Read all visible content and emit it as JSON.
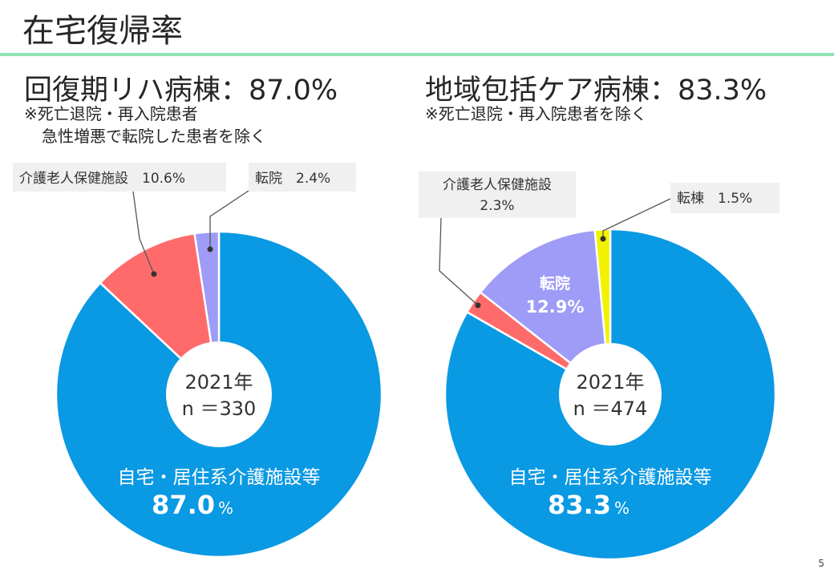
{
  "page": {
    "title": "在宅復帰率",
    "page_number": "5"
  },
  "colors": {
    "home": "#0a99e3",
    "care_facility": "#ff6b6b",
    "transfer_hospital": "#9e9cf7",
    "transfer_ward": "#f2f200",
    "callout_bg": "#f0f0f0",
    "rule": "#8fe3b3"
  },
  "panels": [
    {
      "heading": "回復期リハ病棟：87.0%",
      "note_line1": "※死亡退院・再入院患者",
      "note_line2": "急性増悪で転院した患者を除く",
      "center_year": "2021年",
      "center_n": "n ＝330",
      "main_label": "自宅・居住系介護施設等",
      "main_value": "87.0",
      "main_unit": "%",
      "callouts": [
        {
          "text": "介護老人保健施設　10.6%"
        },
        {
          "text": "転院　2.4%"
        }
      ]
    },
    {
      "heading": "地域包括ケア病棟：83.3%",
      "note_line1": "※死亡退院・再入院患者を除く",
      "center_year": "2021年",
      "center_n": "n ＝474",
      "main_label": "自宅・居住系介護施設等",
      "main_value": "83.3",
      "main_unit": "%",
      "inner_label_line1": "転院",
      "inner_label_line2": "12.9%",
      "callouts": [
        {
          "text_line1": "介護老人保健施設",
          "text_line2": "2.3%"
        },
        {
          "text": "転棟　1.5%"
        }
      ]
    }
  ],
  "chart_data": [
    {
      "type": "pie",
      "title": "回復期リハ病棟：87.0%",
      "categories": [
        "自宅・居住系介護施設等",
        "介護老人保健施設",
        "転院"
      ],
      "values": [
        87.0,
        10.6,
        2.4
      ],
      "colors": [
        "#0a99e3",
        "#ff6b6b",
        "#9e9cf7"
      ],
      "center_text": [
        "2021年",
        "n ＝330"
      ]
    },
    {
      "type": "pie",
      "title": "地域包括ケア病棟：83.3%",
      "categories": [
        "自宅・居住系介護施設等",
        "介護老人保健施設",
        "転院",
        "転棟"
      ],
      "values": [
        83.3,
        2.3,
        12.9,
        1.5
      ],
      "colors": [
        "#0a99e3",
        "#ff6b6b",
        "#9e9cf7",
        "#f2f200"
      ],
      "center_text": [
        "2021年",
        "n ＝474"
      ]
    }
  ]
}
